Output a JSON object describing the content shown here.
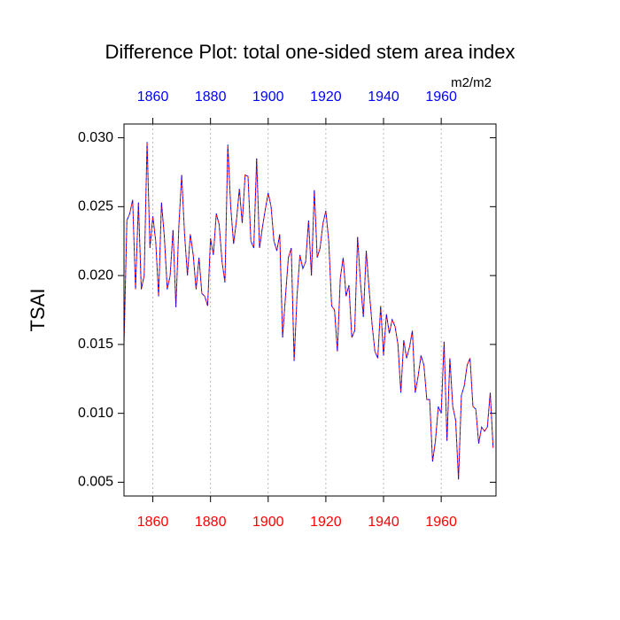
{
  "chart_data": {
    "type": "line",
    "title": "Difference Plot: total one-sided stem area index",
    "ylabel": "TSAI",
    "units": "m2/m2",
    "x": [
      1850,
      1851,
      1852,
      1853,
      1854,
      1855,
      1856,
      1857,
      1858,
      1859,
      1860,
      1861,
      1862,
      1863,
      1864,
      1865,
      1866,
      1867,
      1868,
      1869,
      1870,
      1871,
      1872,
      1873,
      1874,
      1875,
      1876,
      1877,
      1878,
      1879,
      1880,
      1881,
      1882,
      1883,
      1884,
      1885,
      1886,
      1887,
      1888,
      1889,
      1890,
      1891,
      1892,
      1893,
      1894,
      1895,
      1896,
      1897,
      1898,
      1899,
      1900,
      1901,
      1902,
      1903,
      1904,
      1905,
      1906,
      1907,
      1908,
      1909,
      1910,
      1911,
      1912,
      1913,
      1914,
      1915,
      1916,
      1917,
      1918,
      1919,
      1920,
      1921,
      1922,
      1923,
      1924,
      1925,
      1926,
      1927,
      1928,
      1929,
      1930,
      1931,
      1932,
      1933,
      1934,
      1935,
      1936,
      1937,
      1938,
      1939,
      1940,
      1941,
      1942,
      1943,
      1944,
      1945,
      1946,
      1947,
      1948,
      1949,
      1950,
      1951,
      1952,
      1953,
      1954,
      1955,
      1956,
      1957,
      1958,
      1959,
      1960,
      1961,
      1962,
      1963,
      1964,
      1965,
      1966,
      1967,
      1968,
      1969,
      1970,
      1971,
      1972,
      1973,
      1974,
      1975,
      1976,
      1977,
      1978
    ],
    "series": [
      {
        "color": "#ff0000",
        "values": [
          0.015,
          0.024,
          0.0245,
          0.0255,
          0.019,
          0.0253,
          0.019,
          0.02,
          0.0297,
          0.022,
          0.0243,
          0.0225,
          0.0185,
          0.0253,
          0.0228,
          0.019,
          0.02,
          0.0233,
          0.0177,
          0.0235,
          0.0273,
          0.023,
          0.02,
          0.023,
          0.0215,
          0.019,
          0.0213,
          0.0187,
          0.0185,
          0.0178,
          0.0227,
          0.0215,
          0.0245,
          0.0237,
          0.021,
          0.0195,
          0.0295,
          0.025,
          0.0223,
          0.024,
          0.0263,
          0.0238,
          0.0273,
          0.0272,
          0.0225,
          0.022,
          0.0285,
          0.022,
          0.0235,
          0.0248,
          0.026,
          0.025,
          0.0225,
          0.0218,
          0.023,
          0.0155,
          0.0185,
          0.0213,
          0.022,
          0.0138,
          0.0185,
          0.0215,
          0.0205,
          0.021,
          0.024,
          0.02,
          0.0262,
          0.0213,
          0.022,
          0.0238,
          0.0247,
          0.0225,
          0.0178,
          0.0175,
          0.0145,
          0.0198,
          0.0213,
          0.0185,
          0.0193,
          0.0155,
          0.016,
          0.0228,
          0.0195,
          0.017,
          0.0218,
          0.019,
          0.0165,
          0.0145,
          0.014,
          0.0178,
          0.0142,
          0.0172,
          0.0158,
          0.0168,
          0.0163,
          0.015,
          0.0115,
          0.0153,
          0.014,
          0.0148,
          0.016,
          0.0115,
          0.0127,
          0.0142,
          0.0135,
          0.011,
          0.011,
          0.0065,
          0.008,
          0.0105,
          0.01,
          0.0152,
          0.008,
          0.014,
          0.0105,
          0.0095,
          0.0052,
          0.0113,
          0.012,
          0.0135,
          0.014,
          0.0105,
          0.0103,
          0.0078,
          0.009,
          0.0087,
          0.009,
          0.0115,
          0.0075
        ]
      },
      {
        "color": "#0000ff",
        "values": [
          0.015,
          0.024,
          0.0245,
          0.0255,
          0.019,
          0.0253,
          0.019,
          0.02,
          0.0297,
          0.022,
          0.0243,
          0.0225,
          0.0185,
          0.0253,
          0.0228,
          0.019,
          0.02,
          0.0233,
          0.0177,
          0.0235,
          0.0273,
          0.023,
          0.02,
          0.023,
          0.0215,
          0.019,
          0.0213,
          0.0187,
          0.0185,
          0.0178,
          0.0227,
          0.0215,
          0.0245,
          0.0237,
          0.021,
          0.0195,
          0.0295,
          0.025,
          0.0223,
          0.024,
          0.0263,
          0.0238,
          0.0273,
          0.0272,
          0.0225,
          0.022,
          0.0285,
          0.022,
          0.0235,
          0.0248,
          0.026,
          0.025,
          0.0225,
          0.0218,
          0.023,
          0.0155,
          0.0185,
          0.0213,
          0.022,
          0.0138,
          0.0185,
          0.0215,
          0.0205,
          0.021,
          0.024,
          0.02,
          0.0262,
          0.0213,
          0.022,
          0.0238,
          0.0247,
          0.0225,
          0.0178,
          0.0175,
          0.0145,
          0.0198,
          0.0213,
          0.0185,
          0.0193,
          0.0155,
          0.016,
          0.0228,
          0.0195,
          0.017,
          0.0218,
          0.019,
          0.0165,
          0.0145,
          0.014,
          0.0178,
          0.0142,
          0.0172,
          0.0158,
          0.0168,
          0.0163,
          0.015,
          0.0115,
          0.0153,
          0.014,
          0.0148,
          0.016,
          0.0115,
          0.0127,
          0.0142,
          0.0135,
          0.011,
          0.011,
          0.0065,
          0.008,
          0.0105,
          0.01,
          0.0152,
          0.008,
          0.014,
          0.0105,
          0.0095,
          0.0052,
          0.0113,
          0.012,
          0.0135,
          0.014,
          0.0105,
          0.0103,
          0.0078,
          0.009,
          0.0087,
          0.009,
          0.0115,
          0.0075
        ]
      }
    ],
    "xlim": [
      1850,
      1979
    ],
    "xticks": [
      1860,
      1880,
      1900,
      1920,
      1940,
      1960
    ],
    "x2ticks": [
      1860,
      1880,
      1900,
      1920,
      1940,
      1960
    ],
    "ylim": [
      0.004,
      0.031
    ],
    "yticks": [
      {
        "value": 0.005,
        "label": "0.005"
      },
      {
        "value": 0.01,
        "label": "0.010"
      },
      {
        "value": 0.015,
        "label": "0.015"
      },
      {
        "value": 0.02,
        "label": "0.020"
      },
      {
        "value": 0.025,
        "label": "0.025"
      },
      {
        "value": 0.03,
        "label": "0.030"
      }
    ],
    "grid": true
  }
}
